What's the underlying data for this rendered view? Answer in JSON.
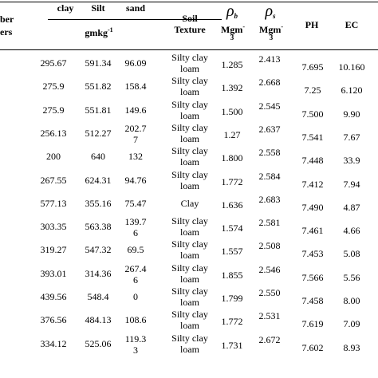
{
  "header": {
    "col0_top": "ber",
    "col0_bottom": "ers",
    "clay": "clay",
    "silt": "Silt",
    "sand": "sand",
    "unit": "gmkg",
    "unit_sup": "-1",
    "texture_1": "Soil",
    "texture_2": "Texture",
    "rho_b_symbol": "ρ",
    "rho_b_sub": "b",
    "rho_b_unit": "Mgm",
    "rho_b_unit_sup": "-",
    "rho_b_unit_3": "3",
    "rho_s_symbol": "ρ",
    "rho_s_sub": "s",
    "rho_s_unit": "Mgm",
    "rho_s_unit_sup": "-",
    "rho_s_unit_3": "3",
    "ph": "PH",
    "ec": "EC"
  },
  "rows": [
    {
      "clay": "295.67",
      "silt": "591.34",
      "sand": "96.09",
      "tex1": "Silty clay",
      "tex2": "loam",
      "rb": "1.285",
      "rs": "2.413",
      "ph": "7.695",
      "ec": "10.160"
    },
    {
      "clay": "275.9",
      "silt": "551.82",
      "sand": "158.4",
      "tex1": "Silty clay",
      "tex2": "loam",
      "rb": "1.392",
      "rs": "2.668",
      "ph": "7.25",
      "ec": "6.120"
    },
    {
      "clay": "275.9",
      "silt": "551.81",
      "sand": "149.6",
      "tex1": "Silty clay",
      "tex2": "loam",
      "rb": "1.500",
      "rs": "2.545",
      "ph": "7.500",
      "ec": "9.90"
    },
    {
      "clay": "256.13",
      "silt": "512.27",
      "sand1": "202.7",
      "sand2": "7",
      "tex1": "Silty clay",
      "tex2": "loam",
      "rb": "1.27",
      "rs": "2.637",
      "ph": "7.541",
      "ec": "7.67"
    },
    {
      "clay": "200",
      "silt": "640",
      "sand": "132",
      "tex1": "Silty clay",
      "tex2": "loam",
      "rb": "1.800",
      "rs": "2.558",
      "ph": "7.448",
      "ec": "33.9"
    },
    {
      "clay": "267.55",
      "silt": "624.31",
      "sand": "94.76",
      "tex1": "Silty clay",
      "tex2": "loam",
      "rb": "1.772",
      "rs": "2.584",
      "ph": "7.412",
      "ec": "7.94"
    },
    {
      "clay": "577.13",
      "silt": "355.16",
      "sand": "75.47",
      "tex1": "Clay",
      "tex2": "",
      "rb": "1.636",
      "rs": "2.683",
      "ph": "7.490",
      "ec": "4.87"
    },
    {
      "clay": "303.35",
      "silt": "563.38",
      "sand1": "139.7",
      "sand2": "6",
      "tex1": "Silty clay",
      "tex2": "loam",
      "rb": "1.574",
      "rs": "2.581",
      "ph": "7.461",
      "ec": "4.66"
    },
    {
      "clay": "319.27",
      "silt": "547.32",
      "sand": "69.5",
      "tex1": "Silty clay",
      "tex2": "loam",
      "rb": "1.557",
      "rs": "2.508",
      "ph": "7.453",
      "ec": "5.08"
    },
    {
      "clay": "393.01",
      "silt": "314.36",
      "sand1": "267.4",
      "sand2": "6",
      "tex1": "Silty clay",
      "tex2": "loam",
      "rb": "1.855",
      "rs": "2.546",
      "ph": "7.566",
      "ec": "5.56"
    },
    {
      "clay": "439.56",
      "silt": "548.4",
      "sand": "0",
      "tex1": "Silty clay",
      "tex2": "loam",
      "rb": "1.799",
      "rs": "2.550",
      "ph": "7.458",
      "ec": "8.00"
    },
    {
      "clay": "376.56",
      "silt": "484.13",
      "sand": "108.6",
      "tex1": "Silty clay",
      "tex2": "loam",
      "rb": "1.772",
      "rs": "2.531",
      "ph": "7.619",
      "ec": "7.09"
    },
    {
      "clay": "334.12",
      "silt": "525.06",
      "sand1": "119.3",
      "sand2": "3",
      "tex1": "Silty clay",
      "tex2": "loam",
      "rb": "1.731",
      "rs": "2.672",
      "ph": "7.602",
      "ec": "8.93"
    }
  ]
}
